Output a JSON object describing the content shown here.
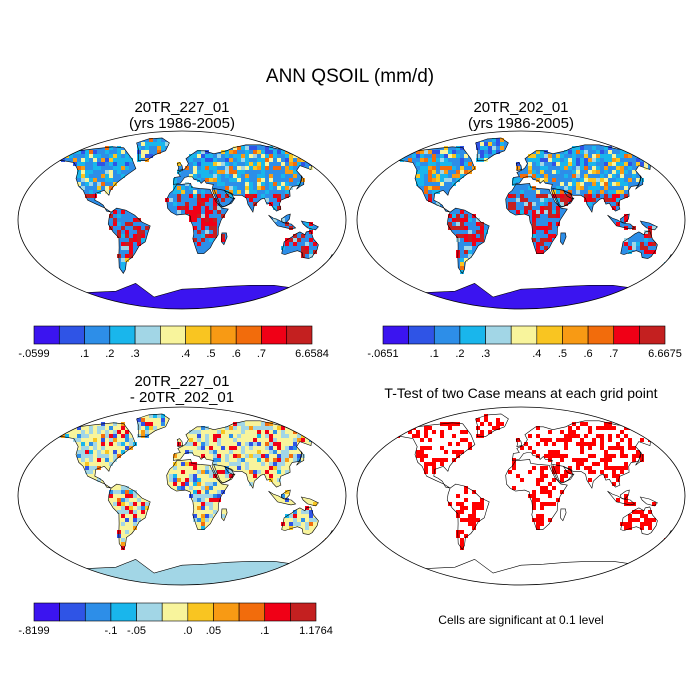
{
  "title": "ANN QSOIL (mm/d)",
  "panels": [
    {
      "id": "case1",
      "title_line1": "20TR_227_01",
      "title_line2": "(yrs 1986-2005)",
      "type": "field"
    },
    {
      "id": "case2",
      "title_line1": "20TR_202_01",
      "title_line2": "(yrs 1986-2005)",
      "type": "field"
    },
    {
      "id": "diff",
      "title_line1": "20TR_227_01",
      "title_line2": "- 20TR_202_01",
      "type": "difference"
    },
    {
      "id": "ttest",
      "title_line1": "T-Test of two Case means at each grid point",
      "title_line2": "",
      "type": "significance"
    }
  ],
  "colorbars": [
    {
      "panel": "case1",
      "colors": [
        "#3b14f0",
        "#2f54e6",
        "#2d8ee8",
        "#19b6ec",
        "#a2d6e6",
        "#f8f49c",
        "#f9c521",
        "#f89a14",
        "#f26c0c",
        "#f00016",
        "#c42020"
      ],
      "labels": [
        "-.0599",
        ".1",
        ".2",
        ".3",
        ".4",
        ".5",
        ".6",
        ".7",
        "6.6584"
      ]
    },
    {
      "panel": "case2",
      "colors": [
        "#3b14f0",
        "#2f54e6",
        "#2d8ee8",
        "#19b6ec",
        "#a2d6e6",
        "#f8f49c",
        "#f9c521",
        "#f89a14",
        "#f26c0c",
        "#f00016",
        "#c42020"
      ],
      "labels": [
        "-.0651",
        ".1",
        ".2",
        ".3",
        ".4",
        ".5",
        ".6",
        ".7",
        "6.6675"
      ]
    },
    {
      "panel": "diff",
      "colors": [
        "#3b14f0",
        "#2f54e6",
        "#2d8ee8",
        "#19b6ec",
        "#a2d6e6",
        "#f8f49c",
        "#f9c521",
        "#f89a14",
        "#f26c0c",
        "#f00016",
        "#c42020"
      ],
      "labels": [
        "-.8199",
        "-.1",
        "-.05",
        ".0",
        ".05",
        ".1",
        "1.1764"
      ]
    }
  ],
  "significance_note": "Cells are significant at 0.1 level",
  "significance_color": "#ff0000",
  "land_colors": {
    "case_mean": "#2d8ee8",
    "case_high": "#f00016",
    "case_mid": "#f9c521",
    "antarctica": "#3b14f0",
    "diff_base": "#f8f49c",
    "diff_low": "#2f54e6",
    "diff_high": "#f00016",
    "antarctica_diff": "#a2d6e6"
  }
}
